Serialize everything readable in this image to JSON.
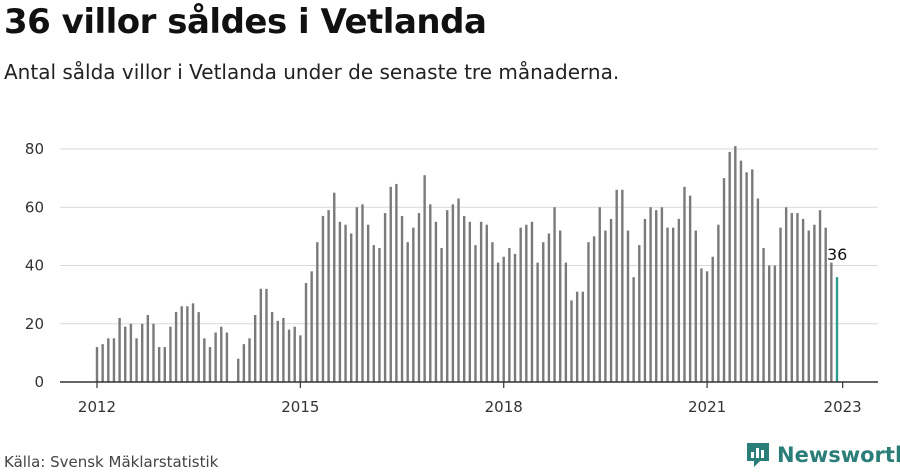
{
  "title": "36 villor såldes i Vetlanda",
  "subtitle": "Antal sålda villor i Vetlanda under de senaste tre månaderna.",
  "source": "Källa: Svensk Mäklarstatistik",
  "brand": "Newsworthy",
  "colors": {
    "bar": "#7a7a7a",
    "highlight": "#2a9d8f",
    "grid": "#d9d9d9",
    "brand": "#2b7d78"
  },
  "chart_data": {
    "type": "bar",
    "x_start": "2012-01",
    "x_end": "2023-01",
    "x_tick_labels": [
      "2012",
      "2015",
      "2018",
      "2021",
      "2023"
    ],
    "y_tick_labels": [
      "0",
      "20",
      "40",
      "60",
      "80"
    ],
    "ylim": [
      0,
      85
    ],
    "grid": true,
    "highlight_value_label": "36",
    "values": [
      12,
      13,
      15,
      15,
      22,
      19,
      20,
      15,
      20,
      23,
      20,
      12,
      12,
      19,
      24,
      26,
      26,
      27,
      24,
      15,
      12,
      17,
      19,
      17,
      0,
      8,
      13,
      15,
      23,
      32,
      32,
      24,
      21,
      22,
      18,
      19,
      16,
      34,
      38,
      48,
      57,
      59,
      65,
      55,
      54,
      51,
      60,
      61,
      54,
      47,
      46,
      58,
      67,
      68,
      57,
      48,
      53,
      58,
      71,
      61,
      55,
      46,
      59,
      61,
      63,
      57,
      55,
      47,
      55,
      54,
      48,
      41,
      43,
      46,
      44,
      53,
      54,
      55,
      41,
      48,
      51,
      60,
      52,
      41,
      28,
      31,
      31,
      48,
      50,
      60,
      52,
      56,
      66,
      66,
      52,
      36,
      47,
      56,
      60,
      59,
      60,
      53,
      53,
      56,
      67,
      64,
      52,
      39,
      38,
      43,
      54,
      70,
      79,
      81,
      76,
      72,
      73,
      63,
      46,
      40,
      40,
      53,
      60,
      58,
      58,
      56,
      52,
      54,
      59,
      53,
      41,
      36
    ]
  }
}
